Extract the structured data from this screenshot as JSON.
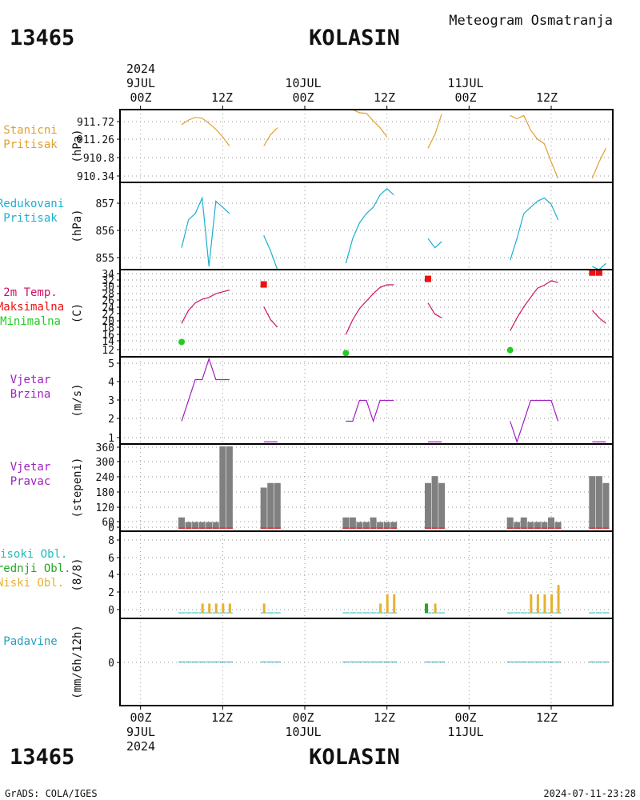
{
  "header": {
    "station_id": "13465",
    "station_name": "KOLASIN",
    "subtitle": "Meteogram Osmatranja",
    "footer_left": "GrADS: COLA/IGES",
    "footer_right": "2024-07-11-23:28"
  },
  "time_axis": {
    "top_year": "2024",
    "bottom_year": "2024",
    "hour_labels": [
      "00Z",
      "12Z",
      "00Z",
      "12Z",
      "00Z",
      "12Z"
    ],
    "date_labels": [
      "9JUL",
      "10JUL",
      "11JUL"
    ],
    "range_hours": [
      -3,
      69
    ]
  },
  "colors": {
    "pressure": "#e0a030",
    "reduced": "#1ab0d0",
    "temp": "#cc1166",
    "tmax": "#ee1111",
    "tmin": "#22cc22",
    "wind": "#a020c0",
    "bars": "#808080",
    "high_cloud": "#22bbbb",
    "mid_cloud": "#22aa22",
    "low_cloud": "#e8b030",
    "precip": "#22a0c0"
  },
  "chart_data": [
    {
      "type": "line",
      "panel": "pressure",
      "label_lines": [
        {
          "text": "Stanicni",
          "color": "#e0a030"
        },
        {
          "text": "Pritisak",
          "color": "#e0a030"
        }
      ],
      "ylabel": "(hPa)",
      "yticks": [
        "911.72",
        "911.26",
        "910.8",
        "910.34"
      ],
      "ylim": [
        910.25,
        911.85
      ],
      "segments": [
        [
          [
            6,
            911.52
          ],
          [
            7,
            911.62
          ],
          [
            8,
            911.68
          ],
          [
            9,
            911.66
          ],
          [
            10,
            911.55
          ],
          [
            11,
            911.42
          ],
          [
            12,
            911.25
          ],
          [
            13,
            911.05
          ]
        ],
        [
          [
            18,
            911.05
          ],
          [
            19,
            911.3
          ],
          [
            20,
            911.45
          ]
        ],
        [
          [
            30,
            911.85
          ],
          [
            31,
            911.85
          ],
          [
            32,
            911.78
          ],
          [
            33,
            911.77
          ],
          [
            34,
            911.6
          ],
          [
            35,
            911.45
          ],
          [
            36,
            911.25
          ]
        ],
        [
          [
            42,
            911.0
          ],
          [
            43,
            911.3
          ],
          [
            44,
            911.75
          ]
        ],
        [
          [
            54,
            911.72
          ],
          [
            55,
            911.65
          ],
          [
            56,
            911.72
          ],
          [
            57,
            911.4
          ],
          [
            58,
            911.2
          ],
          [
            59,
            911.1
          ],
          [
            60,
            910.7
          ],
          [
            61,
            910.34
          ]
        ],
        [
          [
            66,
            910.34
          ],
          [
            67,
            910.7
          ],
          [
            68,
            911.0
          ]
        ]
      ]
    },
    {
      "type": "line",
      "panel": "reduced_pressure",
      "label_lines": [
        {
          "text": "Redukovani",
          "color": "#1ab0d0"
        },
        {
          "text": "Pritisak",
          "color": "#1ab0d0"
        }
      ],
      "ylabel": "(hPa)",
      "yticks": [
        "857",
        "856",
        "855"
      ],
      "ylim": [
        854.8,
        857.6
      ],
      "segments": [
        [
          [
            6,
            855.5
          ],
          [
            7,
            856.4
          ],
          [
            8,
            856.6
          ],
          [
            9,
            857.1
          ],
          [
            10,
            854.9
          ],
          [
            11,
            857.0
          ],
          [
            12,
            856.8
          ],
          [
            13,
            856.6
          ]
        ],
        [
          [
            18,
            855.9
          ],
          [
            19,
            855.4
          ],
          [
            20,
            854.8
          ]
        ],
        [
          [
            30,
            855.0
          ],
          [
            31,
            855.8
          ],
          [
            32,
            856.3
          ],
          [
            33,
            856.6
          ],
          [
            34,
            856.8
          ],
          [
            35,
            857.2
          ],
          [
            36,
            857.4
          ],
          [
            37,
            857.2
          ]
        ],
        [
          [
            42,
            855.8
          ],
          [
            43,
            855.5
          ],
          [
            44,
            855.7
          ]
        ],
        [
          [
            54,
            855.1
          ],
          [
            55,
            855.8
          ],
          [
            56,
            856.6
          ],
          [
            57,
            856.8
          ],
          [
            58,
            857.0
          ],
          [
            59,
            857.1
          ],
          [
            60,
            856.9
          ],
          [
            61,
            856.4
          ]
        ],
        [
          [
            66,
            854.9
          ],
          [
            67,
            854.8
          ],
          [
            68,
            855.0
          ]
        ]
      ]
    },
    {
      "type": "line",
      "panel": "temperature",
      "label_lines": [
        {
          "text": "2m Temp.",
          "color": "#cc1166"
        },
        {
          "text": "Maksimalna",
          "color": "#ee1111"
        },
        {
          "text": "Minimalna",
          "color": "#22cc22"
        }
      ],
      "ylabel": "(C)",
      "yticks": [
        "34",
        "32",
        "30",
        "28",
        "26",
        "24",
        "22",
        "20",
        "18",
        "16",
        "14",
        "12"
      ],
      "ylim": [
        11,
        34.5
      ],
      "segments": [
        [
          [
            6,
            20
          ],
          [
            7,
            23.5
          ],
          [
            8,
            25.5
          ],
          [
            9,
            26.5
          ],
          [
            10,
            27
          ],
          [
            11,
            28
          ],
          [
            12,
            28.5
          ],
          [
            13,
            29
          ]
        ],
        [
          [
            18,
            24.5
          ],
          [
            19,
            21
          ],
          [
            20,
            19
          ]
        ],
        [
          [
            30,
            17
          ],
          [
            31,
            21
          ],
          [
            32,
            24
          ],
          [
            33,
            26
          ],
          [
            34,
            28
          ],
          [
            35,
            29.7
          ],
          [
            36,
            30.4
          ],
          [
            37,
            30.4
          ]
        ],
        [
          [
            42,
            25.5
          ],
          [
            43,
            22.5
          ],
          [
            44,
            21.5
          ]
        ],
        [
          [
            54,
            18
          ],
          [
            55,
            21.5
          ],
          [
            56,
            24.5
          ],
          [
            57,
            27
          ],
          [
            58,
            29.5
          ],
          [
            59,
            30.3
          ],
          [
            60,
            31.5
          ],
          [
            61,
            31
          ]
        ],
        [
          [
            66,
            23.5
          ],
          [
            67,
            21.5
          ],
          [
            68,
            20
          ]
        ]
      ],
      "tmax": [
        [
          18,
          30.5
        ],
        [
          42,
          32
        ],
        [
          66,
          33.7
        ],
        [
          67,
          33.7
        ]
      ],
      "tmin": [
        [
          6,
          15
        ],
        [
          30,
          12
        ],
        [
          54,
          12.8
        ]
      ]
    },
    {
      "type": "line",
      "panel": "wind_speed",
      "label_lines": [
        {
          "text": "Vjetar",
          "color": "#a020c0"
        },
        {
          "text": "Brzina",
          "color": "#a020c0"
        }
      ],
      "ylabel": "(m/s)",
      "yticks": [
        "5",
        "4",
        "3",
        "2",
        "1"
      ],
      "ylim": [
        0.9,
        5.1
      ],
      "segments": [
        [
          [
            6,
            2
          ],
          [
            7,
            3
          ],
          [
            8,
            4
          ],
          [
            9,
            4
          ],
          [
            10,
            5
          ],
          [
            11,
            4
          ],
          [
            12,
            4
          ],
          [
            13,
            4
          ]
        ],
        [
          [
            18,
            1
          ],
          [
            19,
            1
          ],
          [
            20,
            1
          ]
        ],
        [
          [
            30,
            2
          ],
          [
            31,
            2
          ],
          [
            32,
            3
          ],
          [
            33,
            3
          ],
          [
            34,
            2
          ],
          [
            35,
            3
          ],
          [
            36,
            3
          ],
          [
            37,
            3
          ]
        ],
        [
          [
            42,
            1
          ],
          [
            43,
            1
          ],
          [
            44,
            1
          ]
        ],
        [
          [
            54,
            2
          ],
          [
            55,
            1
          ],
          [
            56,
            2
          ],
          [
            57,
            3
          ],
          [
            58,
            3
          ],
          [
            59,
            3
          ],
          [
            60,
            3
          ],
          [
            61,
            2
          ]
        ],
        [
          [
            66,
            1
          ],
          [
            67,
            1
          ],
          [
            68,
            1
          ]
        ]
      ]
    },
    {
      "type": "bar",
      "panel": "wind_direction",
      "label_lines": [
        {
          "text": "Vjetar",
          "color": "#a020c0"
        },
        {
          "text": "Pravac",
          "color": "#a020c0"
        }
      ],
      "ylabel": "(stepeni)",
      "yticks": [
        "360",
        "300",
        "240",
        "180",
        "120",
        "60",
        "0"
      ],
      "ylim": [
        -10,
        370
      ],
      "bars": [
        [
          6,
          50
        ],
        [
          7,
          30
        ],
        [
          8,
          30
        ],
        [
          9,
          30
        ],
        [
          10,
          30
        ],
        [
          11,
          30
        ],
        [
          12,
          360
        ],
        [
          13,
          360
        ],
        [
          18,
          180
        ],
        [
          19,
          200
        ],
        [
          20,
          200
        ],
        [
          30,
          50
        ],
        [
          31,
          50
        ],
        [
          32,
          30
        ],
        [
          33,
          30
        ],
        [
          34,
          50
        ],
        [
          35,
          30
        ],
        [
          36,
          30
        ],
        [
          37,
          30
        ],
        [
          42,
          200
        ],
        [
          43,
          230
        ],
        [
          44,
          200
        ],
        [
          54,
          50
        ],
        [
          55,
          30
        ],
        [
          56,
          50
        ],
        [
          57,
          30
        ],
        [
          58,
          30
        ],
        [
          59,
          30
        ],
        [
          60,
          50
        ],
        [
          61,
          30
        ],
        [
          66,
          230
        ],
        [
          67,
          230
        ],
        [
          68,
          200
        ]
      ]
    },
    {
      "type": "bar",
      "panel": "clouds",
      "label_lines": [
        {
          "text": "Visoki Obl.",
          "color": "#22bbbb"
        },
        {
          "text": "Srednji Obl.",
          "color": "#22aa22"
        },
        {
          "text": "Niski Obl.",
          "color": "#e8b030"
        }
      ],
      "ylabel": "(8/8)",
      "yticks": [
        "8",
        "6",
        "4",
        "2",
        "0"
      ],
      "ylim": [
        -0.6,
        8.8
      ],
      "low": [
        [
          9,
          1
        ],
        [
          10,
          1
        ],
        [
          11,
          1
        ],
        [
          12,
          1
        ],
        [
          13,
          1
        ],
        [
          18,
          1
        ],
        [
          35,
          1
        ],
        [
          36,
          2
        ],
        [
          37,
          2
        ],
        [
          43,
          1
        ],
        [
          57,
          2
        ],
        [
          58,
          2
        ],
        [
          59,
          2
        ],
        [
          60,
          2
        ],
        [
          61,
          3
        ]
      ],
      "mid": [
        [
          42,
          1
        ]
      ],
      "obs_hours": [
        6,
        7,
        8,
        9,
        10,
        11,
        12,
        13,
        18,
        19,
        20,
        30,
        31,
        32,
        33,
        34,
        35,
        36,
        37,
        42,
        43,
        44,
        54,
        55,
        56,
        57,
        58,
        59,
        60,
        61,
        66,
        67,
        68
      ]
    },
    {
      "type": "bar",
      "panel": "precipitation",
      "label_lines": [
        {
          "text": "Padavine",
          "color": "#22a0c0"
        }
      ],
      "ylabel": "(mm/6h/12h)",
      "yticks": [
        "0"
      ],
      "ylim": [
        -1,
        1
      ],
      "values": [
        [
          6,
          0
        ],
        [
          7,
          0
        ],
        [
          8,
          0
        ],
        [
          9,
          0
        ],
        [
          10,
          0
        ],
        [
          11,
          0
        ],
        [
          12,
          0
        ],
        [
          13,
          0
        ],
        [
          18,
          0
        ],
        [
          19,
          0
        ],
        [
          20,
          0
        ],
        [
          30,
          0
        ],
        [
          31,
          0
        ],
        [
          32,
          0
        ],
        [
          33,
          0
        ],
        [
          34,
          0
        ],
        [
          35,
          0
        ],
        [
          36,
          0
        ],
        [
          37,
          0
        ],
        [
          42,
          0
        ],
        [
          43,
          0
        ],
        [
          44,
          0
        ],
        [
          54,
          0
        ],
        [
          55,
          0
        ],
        [
          56,
          0
        ],
        [
          57,
          0
        ],
        [
          58,
          0
        ],
        [
          59,
          0
        ],
        [
          60,
          0
        ],
        [
          61,
          0
        ],
        [
          66,
          0
        ],
        [
          67,
          0
        ],
        [
          68,
          0
        ]
      ]
    }
  ]
}
